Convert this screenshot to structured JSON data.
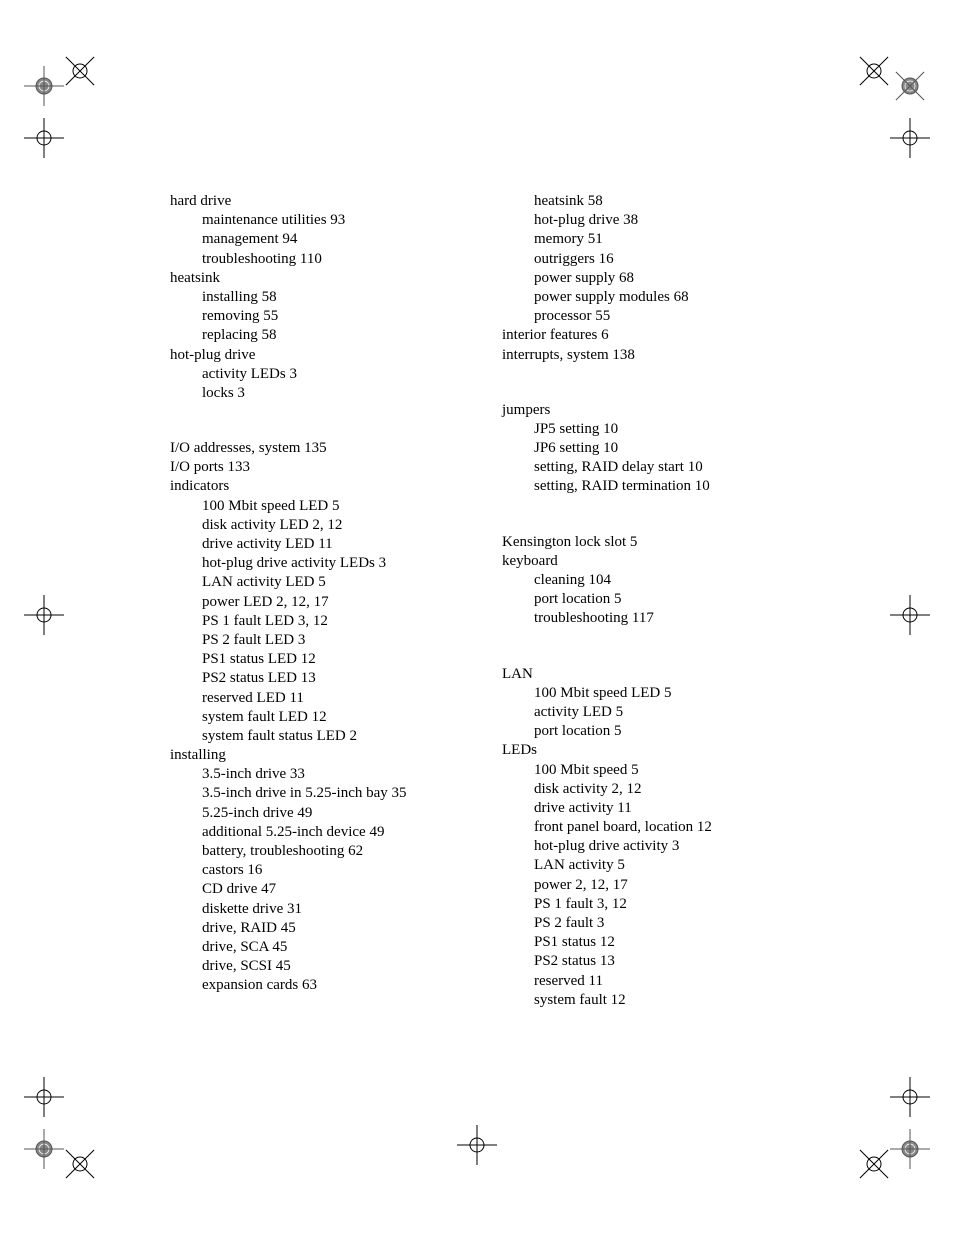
{
  "left_column": [
    {
      "t": "hard drive",
      "sub": 0
    },
    {
      "t": "maintenance utilities 93",
      "sub": 1
    },
    {
      "t": "management 94",
      "sub": 1
    },
    {
      "t": "troubleshooting 110",
      "sub": 1
    },
    {
      "t": "heatsink",
      "sub": 0
    },
    {
      "t": "installing 58",
      "sub": 1
    },
    {
      "t": "removing 55",
      "sub": 1
    },
    {
      "t": "replacing 58",
      "sub": 1
    },
    {
      "t": "hot-plug drive",
      "sub": 0
    },
    {
      "t": "activity LEDs 3",
      "sub": 1
    },
    {
      "t": "locks 3",
      "sub": 1
    },
    {
      "t": "",
      "gap": 1
    },
    {
      "t": "I/O addresses, system 135",
      "sub": 0
    },
    {
      "t": "I/O ports 133",
      "sub": 0
    },
    {
      "t": "indicators",
      "sub": 0
    },
    {
      "t": "100 Mbit speed LED 5",
      "sub": 1
    },
    {
      "t": "disk activity LED 2, 12",
      "sub": 1
    },
    {
      "t": "drive activity LED 11",
      "sub": 1
    },
    {
      "t": "hot-plug drive activity LEDs 3",
      "sub": 1
    },
    {
      "t": "LAN activity LED 5",
      "sub": 1
    },
    {
      "t": "power LED 2, 12, 17",
      "sub": 1
    },
    {
      "t": "PS 1 fault LED 3, 12",
      "sub": 1
    },
    {
      "t": "PS 2 fault LED 3",
      "sub": 1
    },
    {
      "t": "PS1 status LED 12",
      "sub": 1
    },
    {
      "t": "PS2 status LED 13",
      "sub": 1
    },
    {
      "t": "reserved LED 11",
      "sub": 1
    },
    {
      "t": "system fault LED 12",
      "sub": 1
    },
    {
      "t": "system fault status LED 2",
      "sub": 1
    },
    {
      "t": "installing",
      "sub": 0
    },
    {
      "t": "3.5-inch drive 33",
      "sub": 1
    },
    {
      "t": "3.5-inch drive in 5.25-inch bay 35",
      "sub": 1
    },
    {
      "t": "5.25-inch drive 49",
      "sub": 1
    },
    {
      "t": "additional 5.25-inch device 49",
      "sub": 1
    },
    {
      "t": "battery, troubleshooting 62",
      "sub": 1
    },
    {
      "t": "castors 16",
      "sub": 1
    },
    {
      "t": "CD drive 47",
      "sub": 1
    },
    {
      "t": "diskette drive 31",
      "sub": 1
    },
    {
      "t": "drive, RAID 45",
      "sub": 1
    },
    {
      "t": "drive, SCA 45",
      "sub": 1
    },
    {
      "t": "drive, SCSI 45",
      "sub": 1
    },
    {
      "t": "expansion cards 63",
      "sub": 1
    }
  ],
  "right_column": [
    {
      "t": "heatsink 58",
      "sub": 1
    },
    {
      "t": "hot-plug drive 38",
      "sub": 1
    },
    {
      "t": "memory 51",
      "sub": 1
    },
    {
      "t": "outriggers 16",
      "sub": 1
    },
    {
      "t": "power supply 68",
      "sub": 1
    },
    {
      "t": "power supply modules 68",
      "sub": 1
    },
    {
      "t": "processor 55",
      "sub": 1
    },
    {
      "t": "interior features 6",
      "sub": 0
    },
    {
      "t": "interrupts, system 138",
      "sub": 0
    },
    {
      "t": "",
      "gap": 1
    },
    {
      "t": "jumpers",
      "sub": 0
    },
    {
      "t": "JP5 setting 10",
      "sub": 1
    },
    {
      "t": "JP6 setting 10",
      "sub": 1
    },
    {
      "t": "setting, RAID delay start 10",
      "sub": 1
    },
    {
      "t": "setting, RAID termination 10",
      "sub": 1
    },
    {
      "t": "",
      "gap": 1
    },
    {
      "t": "Kensington lock slot 5",
      "sub": 0
    },
    {
      "t": "keyboard",
      "sub": 0
    },
    {
      "t": "cleaning 104",
      "sub": 1
    },
    {
      "t": "port location 5",
      "sub": 1
    },
    {
      "t": "troubleshooting 117",
      "sub": 1
    },
    {
      "t": "",
      "gap": 1
    },
    {
      "t": "LAN",
      "sub": 0
    },
    {
      "t": "100 Mbit speed LED 5",
      "sub": 1
    },
    {
      "t": "activity LED 5",
      "sub": 1
    },
    {
      "t": "port location 5",
      "sub": 1
    },
    {
      "t": "LEDs",
      "sub": 0
    },
    {
      "t": "100 Mbit speed 5",
      "sub": 1
    },
    {
      "t": "disk activity 2, 12",
      "sub": 1
    },
    {
      "t": "drive activity 11",
      "sub": 1
    },
    {
      "t": "front panel board, location 12",
      "sub": 1
    },
    {
      "t": "hot-plug drive activity 3",
      "sub": 1
    },
    {
      "t": "LAN activity 5",
      "sub": 1
    },
    {
      "t": "power 2, 12, 17",
      "sub": 1
    },
    {
      "t": "PS 1 fault 3, 12",
      "sub": 1
    },
    {
      "t": "PS 2 fault 3",
      "sub": 1
    },
    {
      "t": "PS1 status 12",
      "sub": 1
    },
    {
      "t": "PS2 status 13",
      "sub": 1
    },
    {
      "t": "reserved 11",
      "sub": 1
    },
    {
      "t": "system fault 12",
      "sub": 1
    }
  ]
}
